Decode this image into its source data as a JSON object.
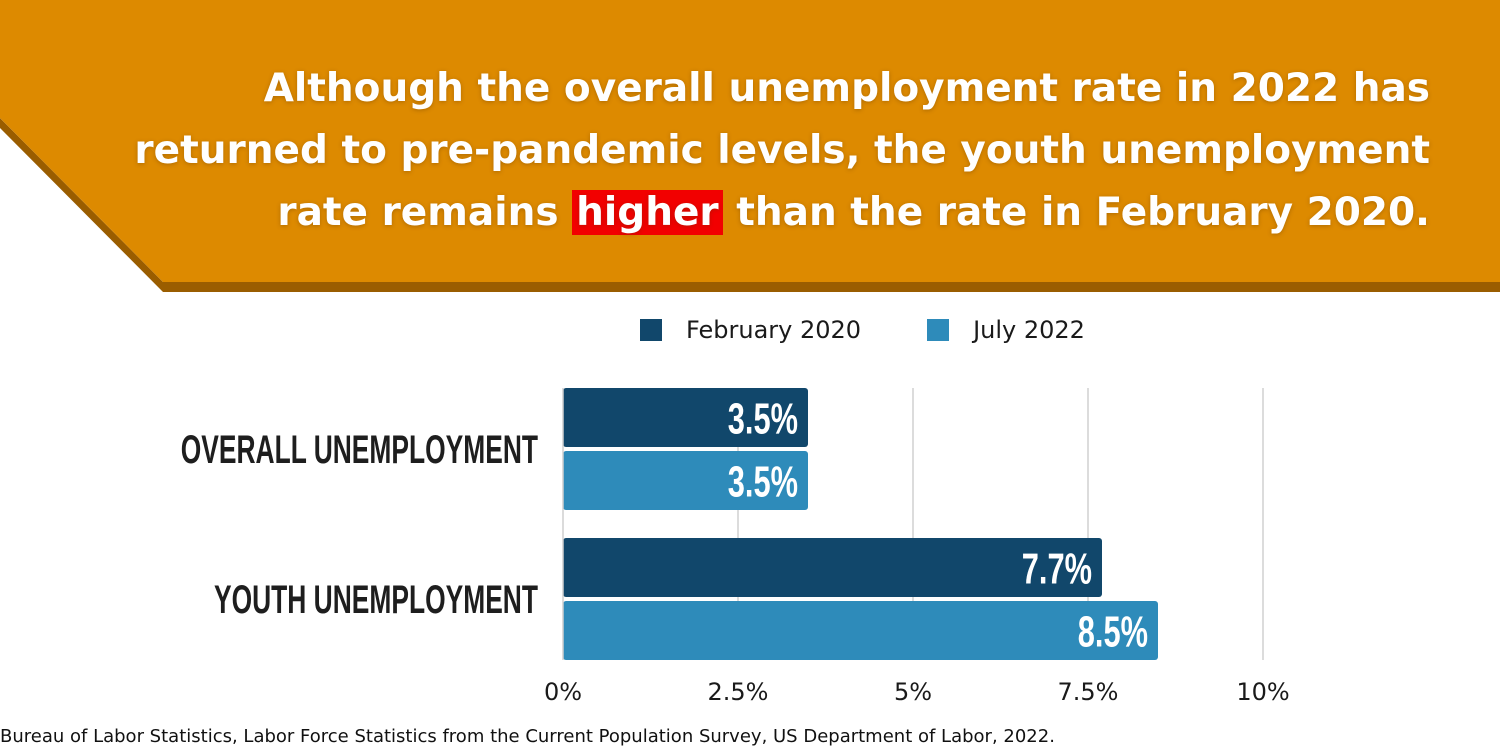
{
  "headline": {
    "line1": "Although the overall unemployment rate in 2022 has",
    "line2": "returned to pre-pandemic levels, the youth unemployment",
    "line3_before": "rate remains ",
    "line3_highlight": "higher",
    "line3_after": " than the rate in February 2020."
  },
  "colors": {
    "banner": "#dd8a00",
    "banner_shadow": "#9a5d00",
    "highlight": "#f20000",
    "feb2020": "#11476b",
    "jul2022": "#2e8bba"
  },
  "chart_data": {
    "type": "bar",
    "orientation": "horizontal",
    "categories": [
      "OVERALL UNEMPLOYMENT",
      "YOUTH UNEMPLOYMENT"
    ],
    "series": [
      {
        "name": "February 2020",
        "values": [
          3.5,
          7.7
        ],
        "labels": [
          "3.5%",
          "7.7%"
        ]
      },
      {
        "name": "July 2022",
        "values": [
          3.5,
          8.5
        ],
        "labels": [
          "3.5%",
          "8.5%"
        ]
      }
    ],
    "xlim": [
      0,
      10
    ],
    "ticks": [
      0,
      2.5,
      5,
      7.5,
      10
    ],
    "tick_labels": [
      "0%",
      "2.5%",
      "5%",
      "7.5%",
      "10%"
    ],
    "grid": true,
    "legend_position": "top"
  },
  "source": "Bureau of Labor Statistics, Labor Force Statistics from the Current Population Survey, US Department of Labor, 2022."
}
